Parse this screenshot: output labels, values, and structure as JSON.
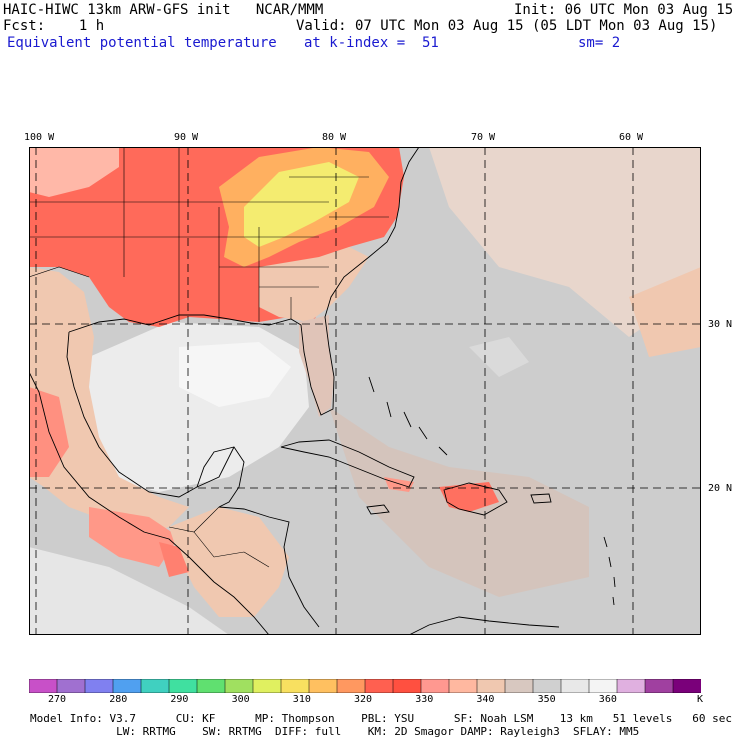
{
  "header": {
    "line1_left": "HAIC-HIWC 13km ARW-GFS init   NCAR/MMM",
    "line1_right": "Init: 06 UTC Mon 03 Aug 15",
    "line2_left": "Fcst:    1 h",
    "line2_right": "Valid: 07 UTC Mon 03 Aug 15 (05 LDT Mon 03 Aug 15)",
    "line3_field": "Equivalent potential temperature",
    "line3_level": "at k-index =  51",
    "line3_smooth": "sm= 2"
  },
  "map": {
    "lon_labels": [
      "100 W",
      "90 W",
      "80 W",
      "70 W",
      "60 W"
    ],
    "lat_labels": [
      "30 N",
      "20 N"
    ],
    "colors": {
      "ocean_base": "#cdcdcd",
      "land_warm": "#ff6f5f",
      "land_hot": "#f0f070",
      "land_orange": "#ffb060",
      "gulf_light": "#ededed",
      "tan": "#f0c8b0",
      "salmon": "#ffa090"
    }
  },
  "colorbar": {
    "colors": [
      "#c850c8",
      "#a070d0",
      "#8080f0",
      "#50a0f0",
      "#40d0c0",
      "#40e0a0",
      "#60e070",
      "#a0e060",
      "#e0f060",
      "#f8e060",
      "#ffc060",
      "#ff9860",
      "#ff6050",
      "#ff5040",
      "#ff9890",
      "#ffb8a0",
      "#f0c8b0",
      "#d8c8c0",
      "#d0d0d0",
      "#e8e8e8",
      "#f4f4f4",
      "#e0b0e0",
      "#a040a0",
      "#7a007a"
    ],
    "tick_labels": [
      "270",
      "280",
      "290",
      "300",
      "310",
      "320",
      "330",
      "340",
      "350",
      "360"
    ],
    "unit": "K"
  },
  "footer": {
    "line1": "Model Info: V3.7      CU: KF      MP: Thompson    PBL: YSU      SF: Noah LSM    13 km   51 levels   60 sec",
    "line2": "             LW: RRTMG    SW: RRTMG  DIFF: full    KM: 2D Smagor DAMP: Rayleigh3  SFLAY: MM5"
  }
}
